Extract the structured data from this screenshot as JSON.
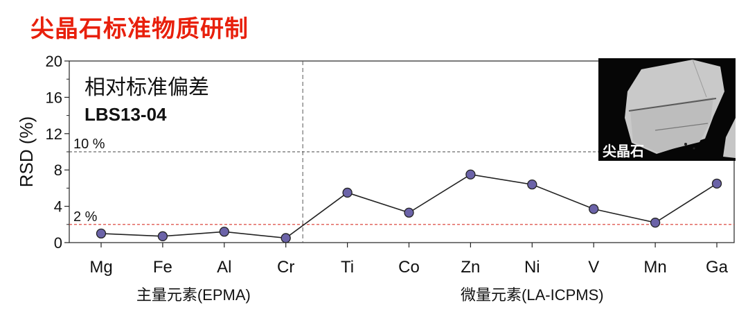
{
  "page": {
    "title": "尖晶石标准物质研制"
  },
  "colors": {
    "title": "#e8200c",
    "marker_fill": "#6b63a8",
    "line": "#222222",
    "ref_10": "#444444",
    "ref_2": "#d9362b"
  },
  "chart_data": {
    "type": "line",
    "title": "相对标准偏差",
    "subtitle": "LBS13-04",
    "ylabel": "RSD (%)",
    "xlabel": "",
    "ylim": [
      0,
      20
    ],
    "yticks": [
      0,
      4,
      8,
      12,
      16,
      20
    ],
    "grid": false,
    "categories": [
      "Mg",
      "Fe",
      "Al",
      "Cr",
      "Ti",
      "Co",
      "Zn",
      "Ni",
      "V",
      "Mn",
      "Ga"
    ],
    "series": [
      {
        "values": [
          1.0,
          0.7,
          1.2,
          0.5,
          5.5,
          3.3,
          7.5,
          6.4,
          3.7,
          2.2,
          6.5
        ]
      }
    ],
    "reference_lines": [
      {
        "label": "10 %",
        "value": 10,
        "style": "dashed",
        "color": "#444444"
      },
      {
        "label": "2 %",
        "value": 2,
        "style": "dashed",
        "color": "#d9362b"
      }
    ],
    "divider_after_category": "Cr",
    "groups": [
      {
        "label": "主量元素(EPMA)",
        "categories": [
          "Mg",
          "Fe",
          "Al",
          "Cr"
        ]
      },
      {
        "label": "微量元素(LA-ICPMS)",
        "categories": [
          "Ti",
          "Co",
          "Zn",
          "Ni",
          "V",
          "Mn",
          "Ga"
        ]
      }
    ],
    "inset_image_label": "尖晶石"
  }
}
